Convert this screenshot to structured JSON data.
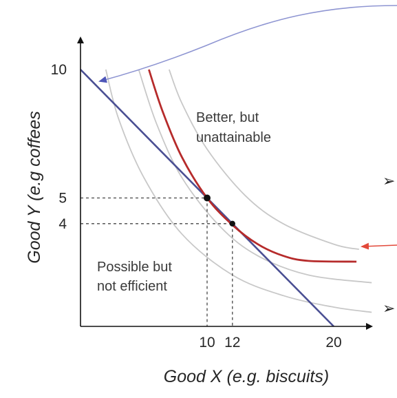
{
  "chart_data": {
    "type": "line",
    "xlabel": "Good X (e.g. biscuits)",
    "ylabel": "Good Y (e.g coffees",
    "x_ticks": [
      {
        "value": 10,
        "label": "10"
      },
      {
        "value": 12,
        "label": "12"
      },
      {
        "value": 20,
        "label": "20"
      }
    ],
    "y_ticks": [
      {
        "value": 10,
        "label": "10"
      },
      {
        "value": 5,
        "label": "5"
      },
      {
        "value": 4,
        "label": "4"
      }
    ],
    "budget_line": {
      "x": [
        0,
        20
      ],
      "y": [
        10,
        0
      ],
      "color": "#4a4f93"
    },
    "highlighted_curve": {
      "color": "#b62b2b",
      "x": [
        5.4,
        6.5,
        8,
        10,
        12,
        14,
        16,
        18,
        21.8
      ],
      "y": [
        10,
        8.35,
        6.6,
        5,
        3.95,
        3.2,
        2.75,
        2.55,
        2.52
      ]
    },
    "indifference_curves": [
      {
        "color": "#c8c8c8",
        "x": [
          2,
          3,
          5,
          8,
          12,
          16,
          20,
          23
        ],
        "y": [
          10,
          8.1,
          5.8,
          3.6,
          2.0,
          1.2,
          0.75,
          0.55
        ]
      },
      {
        "color": "#c8c8c8",
        "x": [
          4.6,
          6,
          8,
          11,
          14,
          18,
          23
        ],
        "y": [
          10,
          7.9,
          5.8,
          3.9,
          2.75,
          2.0,
          1.7
        ]
      },
      {
        "color": "#c8c8c8",
        "x": [
          7,
          8,
          10,
          13,
          16,
          20,
          22
        ],
        "y": [
          10,
          8.7,
          6.9,
          5.1,
          4.0,
          3.2,
          3.0
        ]
      }
    ],
    "points": [
      {
        "x": 10,
        "y": 5
      },
      {
        "x": 12,
        "y": 4
      }
    ],
    "annotations": {
      "better_line1": "Better, but",
      "better_line2": "unattainable",
      "possible_line1": "Possible but",
      "possible_line2": "not efficient"
    },
    "arrow_colors": {
      "top": "#8e95d2",
      "right": "#e2493a"
    },
    "bullet_glyph": "➢"
  }
}
